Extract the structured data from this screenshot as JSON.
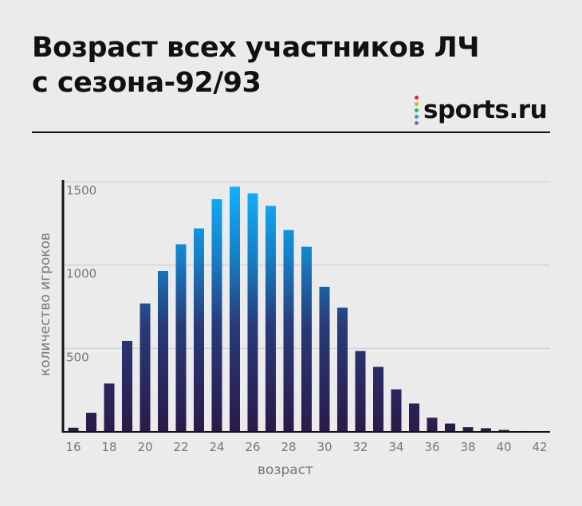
{
  "title": {
    "line1": "Возраст всех участников ЛЧ",
    "line2": "с сезона-92/93"
  },
  "logo": {
    "text": "sports.ru",
    "dot_colors": [
      "#e8234a",
      "#f5a623",
      "#2db34a",
      "#1aa3e8",
      "#9b59b6"
    ]
  },
  "colors": {
    "bar_top": "#12b4ff",
    "bar_bottom": "#2a1a4a",
    "grid": "#c8c8c8",
    "axis": "#111111"
  },
  "chart_data": {
    "type": "bar",
    "x": [
      16,
      17,
      18,
      19,
      20,
      21,
      22,
      23,
      24,
      25,
      26,
      27,
      28,
      29,
      30,
      31,
      32,
      33,
      34,
      35,
      36,
      37,
      38,
      39,
      40,
      41,
      42
    ],
    "values": [
      25,
      115,
      290,
      545,
      770,
      965,
      1125,
      1220,
      1395,
      1470,
      1430,
      1355,
      1210,
      1110,
      870,
      745,
      485,
      390,
      255,
      170,
      85,
      50,
      28,
      22,
      12,
      5,
      3
    ],
    "xticks": [
      "16",
      "18",
      "20",
      "22",
      "24",
      "26",
      "28",
      "30",
      "32",
      "34",
      "36",
      "38",
      "40",
      "42"
    ],
    "yticks": [
      "500",
      "1000",
      "1500"
    ],
    "ytick_values": [
      500,
      1000,
      1500
    ],
    "xlabel": "возраст",
    "ylabel": "количество игроков",
    "ylim": [
      0,
      1500
    ],
    "xlim": [
      16,
      42
    ],
    "grid": true
  }
}
